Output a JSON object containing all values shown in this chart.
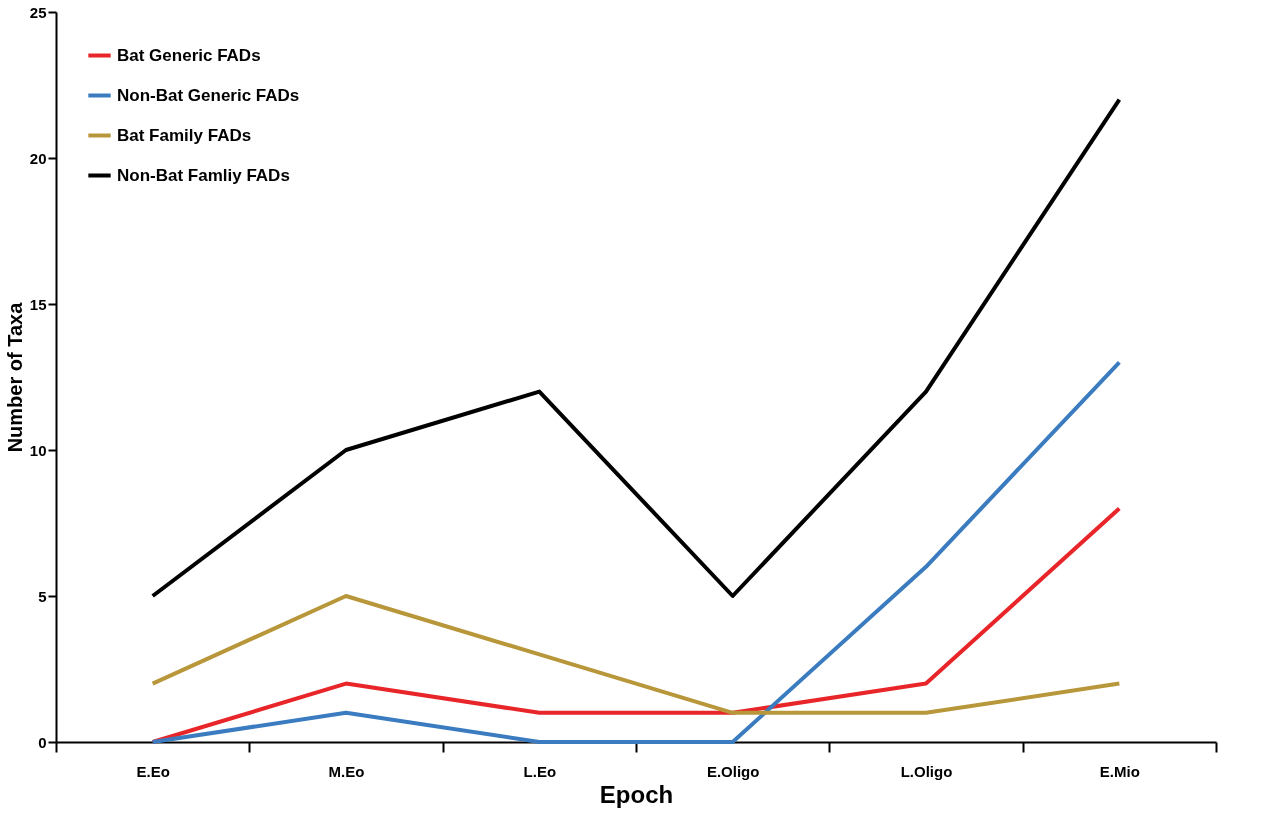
{
  "chart_data": {
    "type": "line",
    "xlabel": "Epoch",
    "ylabel": "Number of Taxa",
    "categories": [
      "E.Eo",
      "M.Eo",
      "L.Eo",
      "E.Oligo",
      "L.Oligo",
      "E.Mio"
    ],
    "series": [
      {
        "name": "Bat Generic FADs",
        "color": "#e8262a",
        "values": [
          0,
          2,
          1,
          1,
          2,
          8
        ]
      },
      {
        "name": "Non-Bat Generic FADs",
        "color": "#3a7cbf",
        "values": [
          0,
          1,
          0,
          0,
          6,
          13
        ]
      },
      {
        "name": "Bat Family FADs",
        "color": "#b8963a",
        "values": [
          2,
          5,
          3,
          1,
          1,
          2
        ]
      },
      {
        "name": "Non-Bat Famliy FADs",
        "color": "#000000",
        "values": [
          5,
          10,
          12,
          5,
          12,
          22
        ]
      }
    ],
    "ylim": [
      0,
      25
    ],
    "yticks": [
      0,
      5,
      10,
      15,
      20,
      25
    ],
    "grid": false,
    "legend": "top left",
    "marker": "none",
    "line_style": "solid"
  }
}
